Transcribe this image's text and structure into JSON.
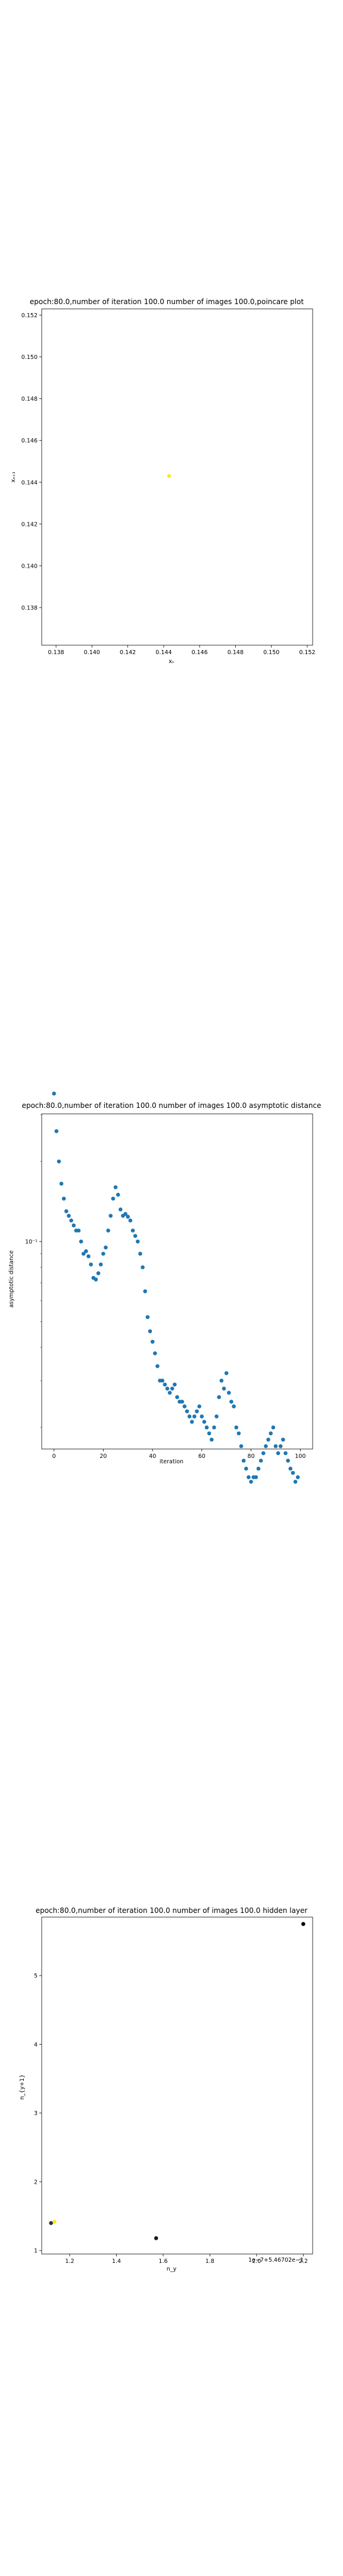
{
  "chart_data": [
    {
      "type": "scatter",
      "title": "epoch:80.0,number of iteration 100.0 number of images 100.0,poincare plot",
      "xlabel": "xₙ",
      "ylabel": "xₙ₊₁",
      "xlim": [
        0.1372,
        0.1523
      ],
      "ylim": [
        0.1362,
        0.1523
      ],
      "x_ticks": [
        "0.138",
        "0.140",
        "0.142",
        "0.144",
        "0.146",
        "0.148",
        "0.150",
        "0.152"
      ],
      "y_ticks": [
        "0.138",
        "0.140",
        "0.142",
        "0.144",
        "0.146",
        "0.148",
        "0.150",
        "0.152"
      ],
      "colors": [
        "#fde725"
      ],
      "points": [
        {
          "x": 0.1443,
          "y": 0.1443
        }
      ]
    },
    {
      "type": "scatter",
      "title": "epoch:80.0,number of iteration 100.0  number of images 100.0 asymptotic distance",
      "xlabel": "iteration",
      "ylabel": "asymptotic distance",
      "xlim": [
        -5,
        105
      ],
      "ylog": true,
      "log_min": -1.78,
      "log_max": -0.52,
      "x_ticks": [
        "0",
        "20",
        "40",
        "60",
        "80",
        "100"
      ],
      "y_ticks": [
        "10⁻¹"
      ],
      "colors": [
        "#1f77b4"
      ],
      "values": [
        0.36,
        0.26,
        0.2,
        0.165,
        0.145,
        0.13,
        0.125,
        0.12,
        0.115,
        0.11,
        0.11,
        0.1,
        0.09,
        0.092,
        0.088,
        0.082,
        0.073,
        0.072,
        0.076,
        0.082,
        0.09,
        0.095,
        0.11,
        0.125,
        0.145,
        0.16,
        0.15,
        0.132,
        0.125,
        0.127,
        0.124,
        0.12,
        0.11,
        0.105,
        0.1,
        0.09,
        0.08,
        0.065,
        0.052,
        0.046,
        0.042,
        0.038,
        0.034,
        0.03,
        0.03,
        0.029,
        0.028,
        0.027,
        0.028,
        0.029,
        0.026,
        0.025,
        0.025,
        0.024,
        0.023,
        0.022,
        0.021,
        0.022,
        0.023,
        0.024,
        0.022,
        0.021,
        0.02,
        0.019,
        0.018,
        0.02,
        0.022,
        0.026,
        0.03,
        0.028,
        0.032,
        0.027,
        0.025,
        0.024,
        0.02,
        0.019,
        0.017,
        0.015,
        0.014,
        0.013,
        0.0125,
        0.013,
        0.013,
        0.014,
        0.015,
        0.016,
        0.017,
        0.018,
        0.019,
        0.02,
        0.017,
        0.016,
        0.017,
        0.018,
        0.016,
        0.015,
        0.014,
        0.0135,
        0.0125,
        0.013
      ]
    },
    {
      "type": "scatter",
      "title": "epoch:80.0,number of iteration 100.0  number of images 100.0 hidden layer",
      "xlabel": "n_y",
      "ylabel": "n_{y+1}",
      "xlim": [
        1.08,
        2.24
      ],
      "ylim": [
        0.95,
        5.85
      ],
      "x_ticks": [
        "1.2",
        "1.4",
        "1.6",
        "1.8",
        "2.0",
        "2.2"
      ],
      "y_ticks": [
        "1",
        "2",
        "3",
        "4",
        "5"
      ],
      "offset_label": "1e−7+5.46702e−1",
      "points": [
        {
          "x": 2.2,
          "y": 5.75,
          "color": "#000000"
        },
        {
          "x": 1.57,
          "y": 1.18,
          "color": "#1a1a1a"
        },
        {
          "x": 1.12,
          "y": 1.4,
          "color": "#333333"
        },
        {
          "x": 1.135,
          "y": 1.42,
          "color": "#fde725"
        }
      ]
    }
  ]
}
